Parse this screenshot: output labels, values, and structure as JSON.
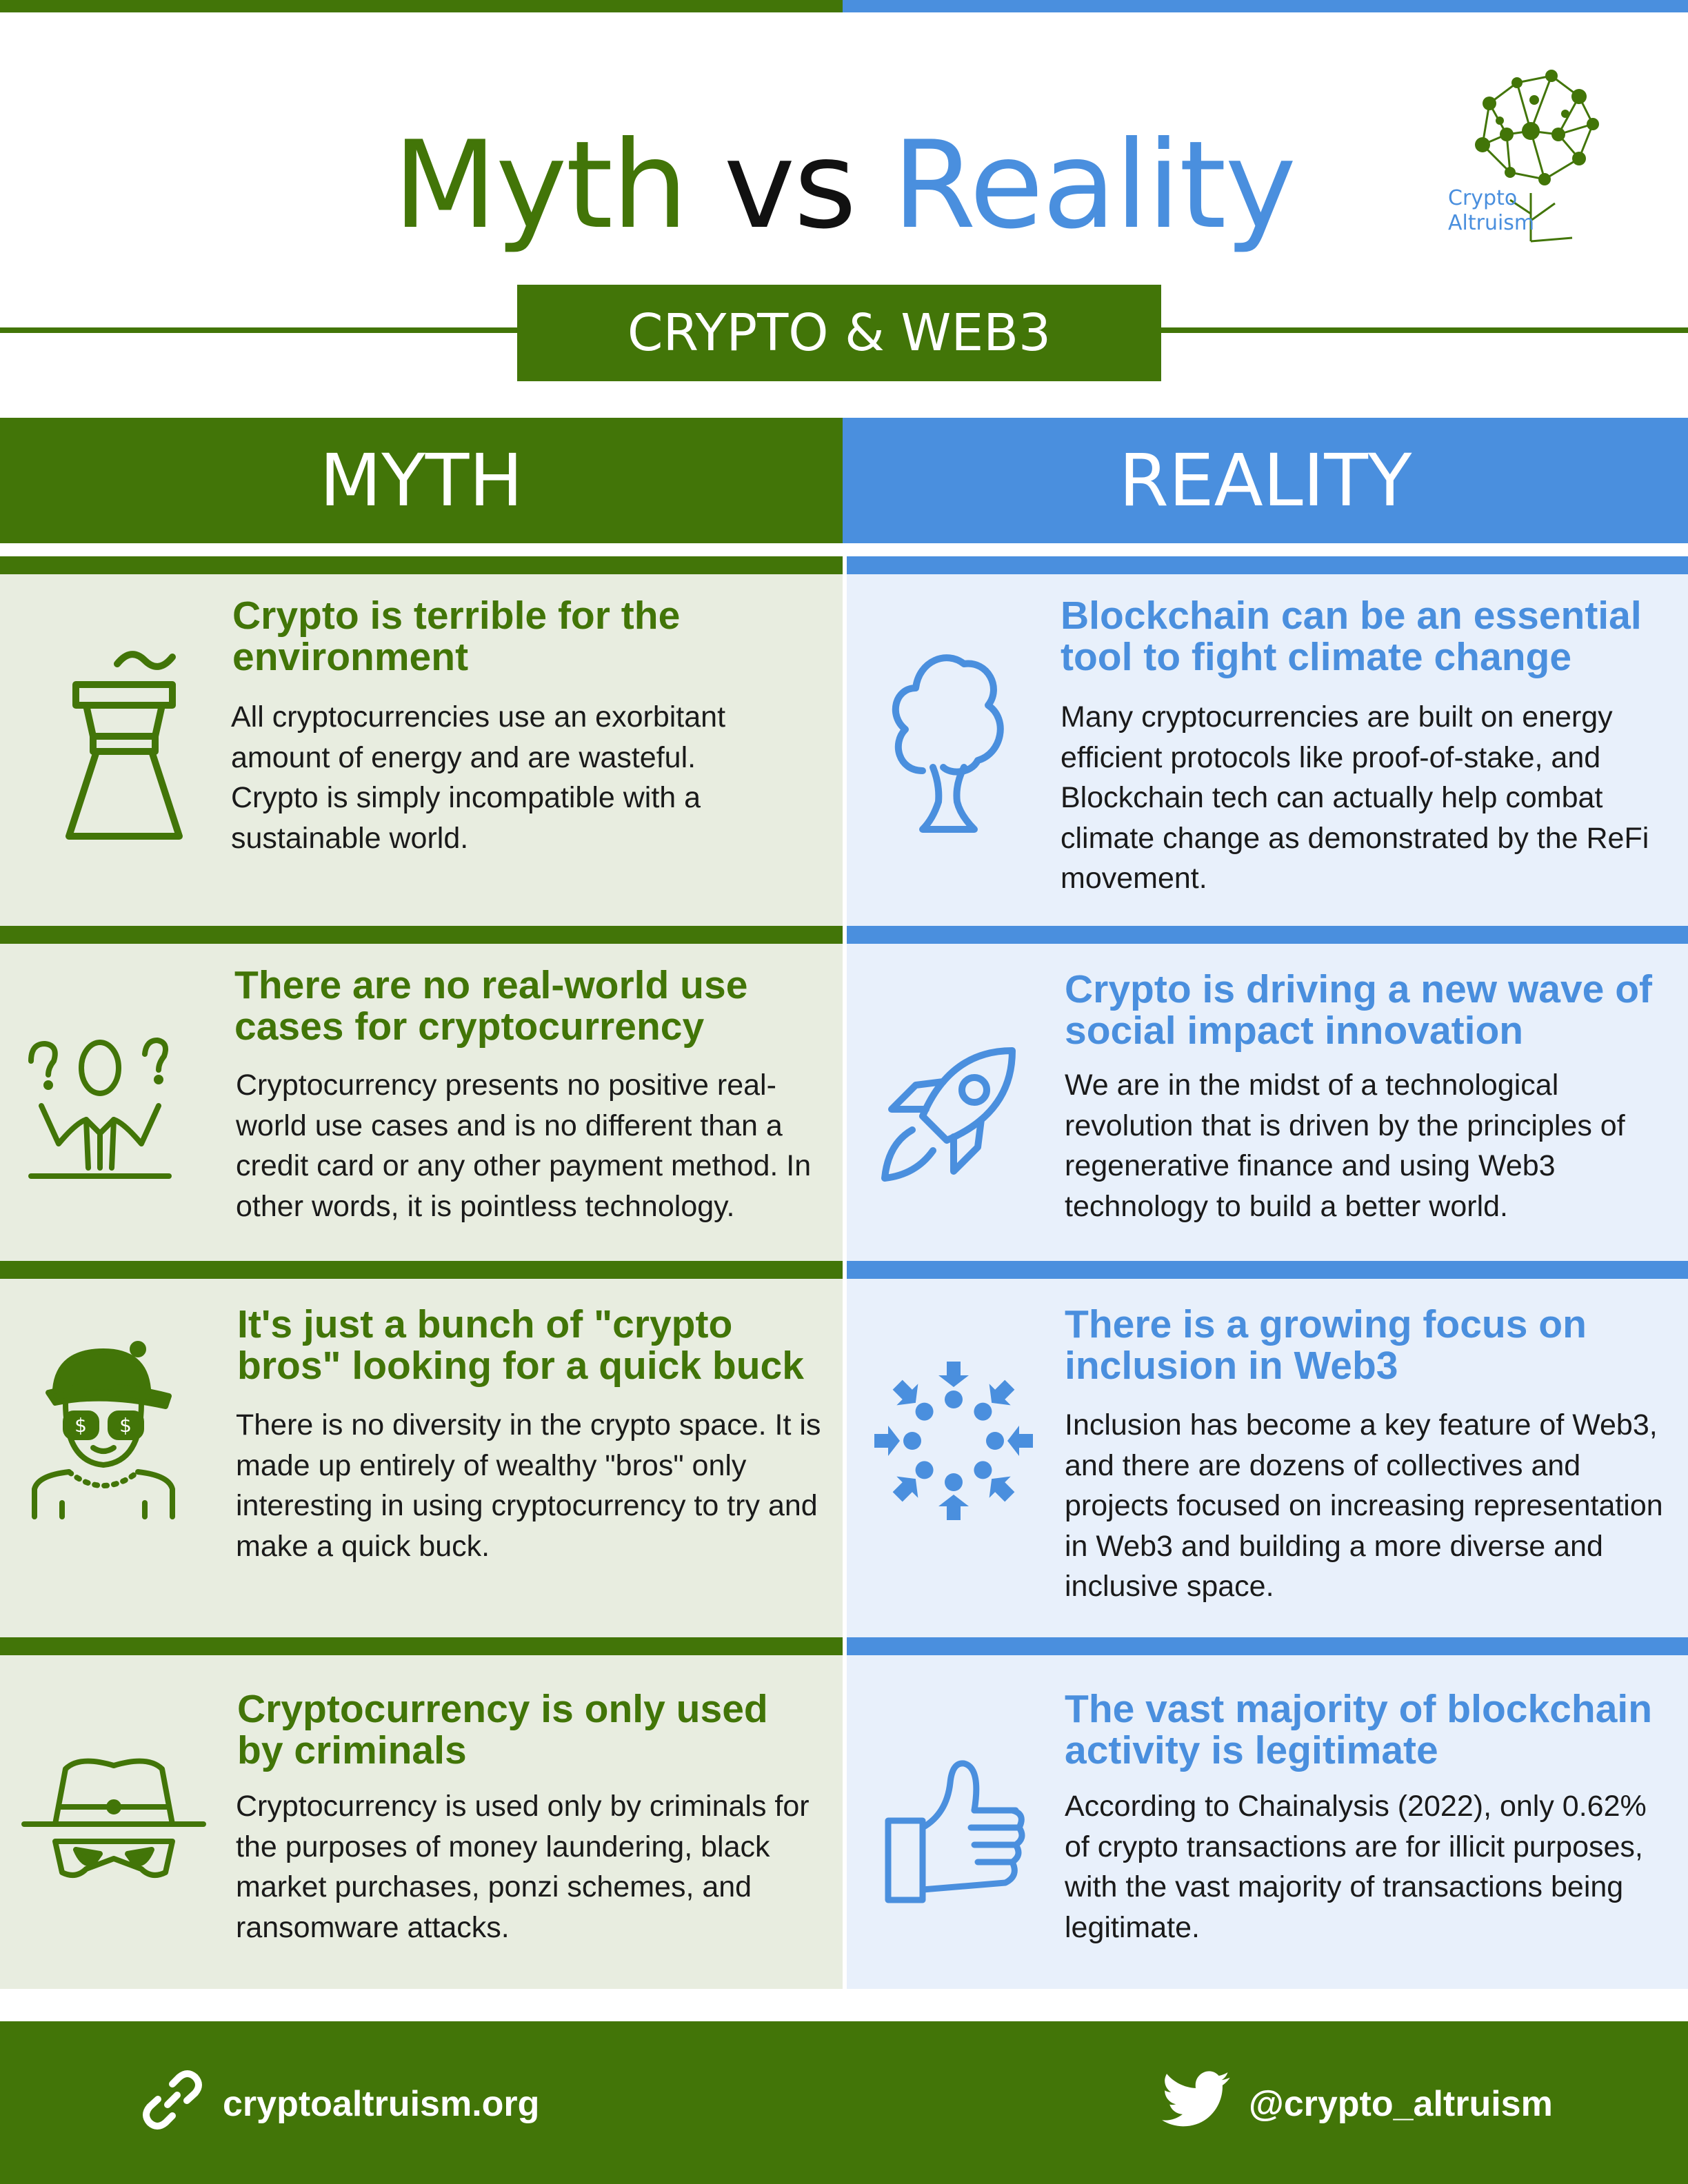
{
  "header": {
    "title_myth": "Myth",
    "title_vs": "vs",
    "title_reality": "Reality",
    "subtitle": "CRYPTO & WEB3",
    "logo_line1": "Crypto",
    "logo_line2": "Altruism",
    "logo_icon": "network-tree-icon"
  },
  "columns": {
    "myth": "MYTH",
    "reality": "REALITY"
  },
  "rows": [
    {
      "myth_icon": "power-plant-icon",
      "myth_title": "Crypto is terrible for the environment",
      "myth_body": "All cryptocurrencies use an exorbitant amount of energy and are wasteful. Crypto is simply incompatible with a sustainable world.",
      "reality_icon": "tree-icon",
      "reality_title": "Blockchain can be an essential tool to fight climate change",
      "reality_body": "Many cryptocurrencies are built on energy efficient protocols like proof-of-stake, and Blockchain tech can actually help combat climate change as demonstrated by the ReFi movement."
    },
    {
      "myth_icon": "confused-person-icon",
      "myth_title": "There are no real-world use cases for cryptocurrency",
      "myth_body": "Cryptocurrency presents no positive real-world use cases and is no different than a credit card or any other payment method. In other words, it is pointless technology.",
      "reality_icon": "rocket-icon",
      "reality_title": "Crypto is driving a new wave of social impact innovation",
      "reality_body": "We are in the midst of a technological revolution that is driven by the principles of regenerative finance and using Web3 technology to build a better world."
    },
    {
      "myth_icon": "crypto-bro-icon",
      "myth_title": "It's just a bunch of \"crypto bros\" looking for a quick buck",
      "myth_body": "There is no diversity in the crypto space. It is made up entirely of wealthy \"bros\" only interesting in using cryptocurrency to try and make a quick buck.",
      "reality_icon": "inclusion-circle-icon",
      "reality_title": "There is a growing focus on inclusion in Web3",
      "reality_body": "Inclusion has become a key feature of Web3, and there are dozens of collectives and projects focused on increasing representation in Web3 and building a more diverse and inclusive space."
    },
    {
      "myth_icon": "criminal-mask-icon",
      "myth_title": "Cryptocurrency is only used by criminals",
      "myth_body": "Cryptocurrency is used only by criminals for the purposes of money laundering, black market purchases, ponzi schemes, and ransomware attacks.",
      "reality_icon": "thumbs-up-icon",
      "reality_title": "The vast majority of blockchain activity is legitimate",
      "reality_body": "According to Chainalysis (2022), only 0.62% of crypto transactions are for illicit purposes, with the vast majority of transactions being legitimate."
    }
  ],
  "footer": {
    "website": "cryptoaltruism.org",
    "website_icon": "link-icon",
    "twitter": "@crypto_altruism",
    "twitter_icon": "twitter-bird-icon"
  },
  "colors": {
    "green": "#427508",
    "blue": "#4a8fde",
    "myth_bg": "#e8ede0",
    "reality_bg": "#e8f0fb"
  }
}
